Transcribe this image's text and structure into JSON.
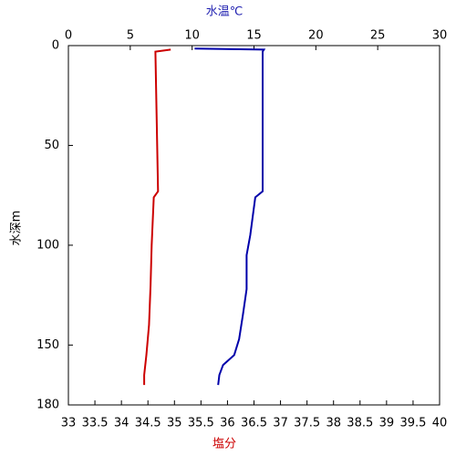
{
  "chart_data": {
    "type": "profile",
    "ylabel": "水深m",
    "ylim": [
      0,
      180
    ],
    "yticks": [
      0,
      50,
      100,
      150,
      180
    ],
    "y_inverted": true,
    "top_xlabel": "水温℃",
    "top_xlim": [
      0,
      30
    ],
    "top_xticks": [
      0,
      5,
      10,
      15,
      20,
      25,
      30
    ],
    "top_color": "#1f1fb0",
    "bottom_xlabel": "塩分",
    "bottom_xlim": [
      33,
      40
    ],
    "bottom_xticks": [
      33,
      33.5,
      34,
      34.5,
      35,
      35.5,
      36,
      36.5,
      37,
      37.5,
      38,
      38.5,
      39,
      39.5,
      40
    ],
    "bottom_color": "#cc0000",
    "series": [
      {
        "axis": "top",
        "color": "#0000aa",
        "depth": [
          1.5,
          2,
          3,
          73,
          76,
          95,
          105,
          122,
          135,
          147,
          155,
          160,
          165,
          170
        ],
        "values": [
          10.2,
          15.8,
          15.7,
          15.7,
          15.1,
          14.7,
          14.4,
          14.4,
          14.1,
          13.8,
          13.4,
          12.5,
          12.2,
          12.1
        ]
      },
      {
        "axis": "bottom",
        "color": "#cc0000",
        "depth": [
          2,
          3,
          73,
          76,
          100,
          120,
          140,
          155,
          165,
          170
        ],
        "values": [
          34.93,
          34.64,
          34.69,
          34.61,
          34.57,
          34.55,
          34.52,
          34.47,
          34.43,
          34.43
        ]
      }
    ]
  }
}
